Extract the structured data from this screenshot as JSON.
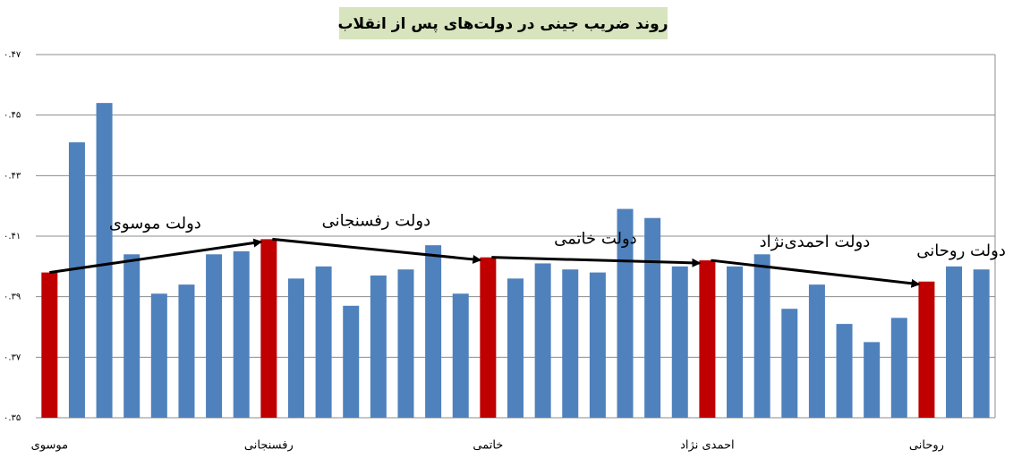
{
  "chart_data": {
    "type": "bar",
    "title": "روند ضریب جینی در دولت‌های پس از انقلاب",
    "categories": [
      "موسوی",
      null,
      null,
      null,
      null,
      null,
      null,
      null,
      "رفسنجانی",
      null,
      null,
      null,
      null,
      null,
      null,
      null,
      "خاتمی",
      null,
      null,
      null,
      null,
      null,
      null,
      null,
      "احمدی نژاد",
      null,
      null,
      null,
      null,
      null,
      null,
      null,
      "روحانی",
      null,
      null
    ],
    "values": [
      0.398,
      0.441,
      0.454,
      0.404,
      0.391,
      0.394,
      0.404,
      0.405,
      0.409,
      0.396,
      0.4,
      0.387,
      0.397,
      0.399,
      0.407,
      0.391,
      0.403,
      0.396,
      0.401,
      0.399,
      0.398,
      0.419,
      0.416,
      0.4,
      0.402,
      0.4,
      0.404,
      0.386,
      0.394,
      0.381,
      0.375,
      0.383,
      0.395,
      0.4,
      0.399
    ],
    "colors": [
      "#c00000",
      "#4f81bd",
      "#4f81bd",
      "#4f81bd",
      "#4f81bd",
      "#4f81bd",
      "#4f81bd",
      "#4f81bd",
      "#c00000",
      "#4f81bd",
      "#4f81bd",
      "#4f81bd",
      "#4f81bd",
      "#4f81bd",
      "#4f81bd",
      "#4f81bd",
      "#c00000",
      "#4f81bd",
      "#4f81bd",
      "#4f81bd",
      "#4f81bd",
      "#4f81bd",
      "#4f81bd",
      "#4f81bd",
      "#c00000",
      "#4f81bd",
      "#4f81bd",
      "#4f81bd",
      "#4f81bd",
      "#4f81bd",
      "#4f81bd",
      "#4f81bd",
      "#c00000",
      "#4f81bd",
      "#4f81bd"
    ],
    "ylim": [
      0.35,
      0.47
    ],
    "yticks": [
      {
        "value": 0.35,
        "label": "۰.۳۵"
      },
      {
        "value": 0.37,
        "label": "۰.۳۷"
      },
      {
        "value": 0.39,
        "label": "۰.۳۹"
      },
      {
        "value": 0.41,
        "label": "۰.۴۱"
      },
      {
        "value": 0.43,
        "label": "۰.۴۳"
      },
      {
        "value": 0.45,
        "label": "۰.۴۵"
      },
      {
        "value": 0.47,
        "label": "۰.۴۷"
      }
    ],
    "grid": true,
    "annotations": [
      "دولت موسوی",
      "دولت رفسنجانی",
      "دولت خاتمی",
      "دولت احمدی‌نژاد",
      "دولت روحانی"
    ]
  }
}
